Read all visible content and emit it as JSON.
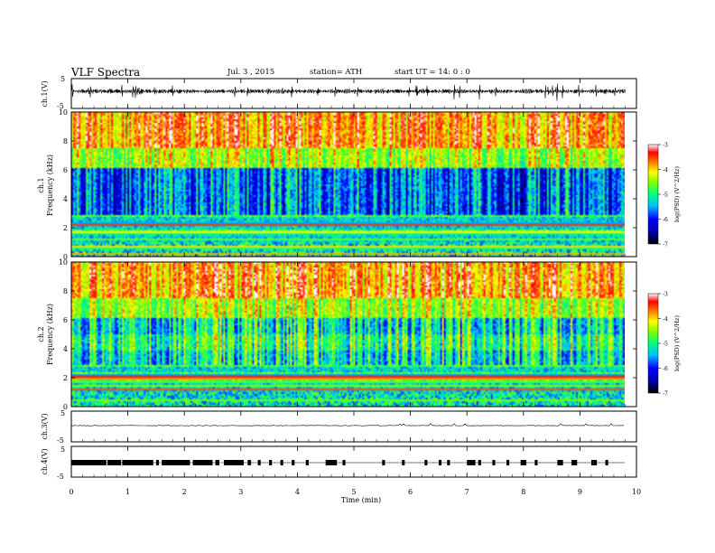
{
  "header": {
    "title": "VLF  Spectra",
    "date": "Jul.  3  , 2015",
    "station": "station= ATH",
    "start": "start  UT =   14: 0  : 0"
  },
  "chart_data": [
    {
      "type": "line",
      "panel": "ch1-waveform",
      "ylabel": "ch.1(V)",
      "ylim": [
        -5,
        5
      ],
      "yticks": [
        "5",
        "-5"
      ],
      "description_value": "broadband waveform, amplitude roughly -1 to 1 V with spikes"
    },
    {
      "type": "heatmap",
      "panel": "ch1-spectrogram",
      "ylabel": "ch.1\nFrequency  (kHz)",
      "ylabel_lines": [
        "ch.1",
        "Frequency  (kHz)"
      ],
      "ylim": [
        0,
        10
      ],
      "yticks": [
        "0",
        "2",
        "4",
        "6",
        "8",
        "10"
      ],
      "colorbar": {
        "label": "log(PSD) (V^2/Hz)",
        "range": [
          -7,
          -3
        ],
        "ticks": [
          "-3",
          "-4",
          "-5",
          "-6",
          "-7"
        ]
      }
    },
    {
      "type": "heatmap",
      "panel": "ch2-spectrogram",
      "ylabel": "ch.2\nFrequency  (kHz)",
      "ylabel_lines": [
        "ch.2",
        "Frequency  (kHz)"
      ],
      "ylim": [
        0,
        10
      ],
      "yticks": [
        "0",
        "2",
        "4",
        "6",
        "8",
        "10"
      ],
      "colorbar": {
        "label": "log(PSD) (V^2/Hz)",
        "range": [
          -7,
          -3
        ],
        "ticks": [
          "-3",
          "-4",
          "-5",
          "-6",
          "-7"
        ]
      }
    },
    {
      "type": "line",
      "panel": "ch3-waveform",
      "ylabel": "ch.3(V)",
      "ylim": [
        -5,
        5
      ],
      "yticks": [
        "5",
        "-5"
      ],
      "description_value": "near-zero flat trace"
    },
    {
      "type": "line",
      "panel": "ch4-waveform",
      "ylabel": "ch.4(V)",
      "ylim": [
        -5,
        5
      ],
      "yticks": [
        "5",
        "-5"
      ],
      "description_value": "pulse bursts near 0 V"
    }
  ],
  "xaxis": {
    "label": "Time  (min)",
    "range": [
      0,
      10
    ],
    "ticks": [
      "0",
      "1",
      "2",
      "3",
      "4",
      "5",
      "6",
      "7",
      "8",
      "9",
      "10"
    ]
  },
  "colors": {
    "spectrum": [
      "#000000",
      "#0000aa",
      "#0000ff",
      "#00bfff",
      "#00ff80",
      "#80ff00",
      "#ffff00",
      "#ff8000",
      "#ff0000",
      "#ffffff"
    ]
  }
}
